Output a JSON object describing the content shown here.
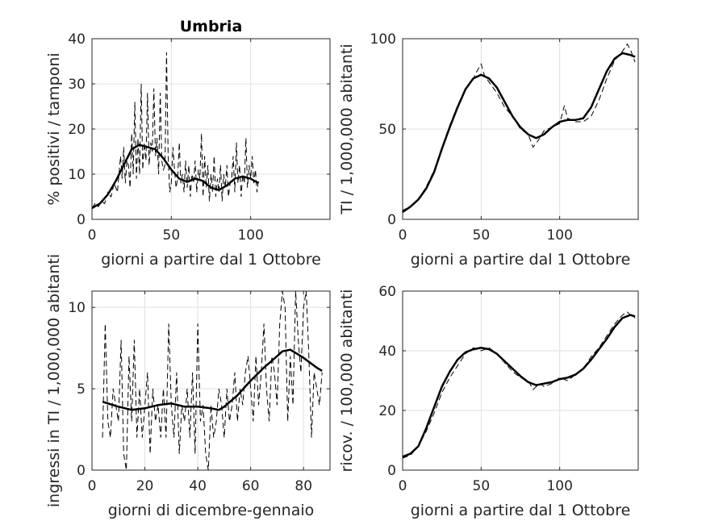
{
  "chart_data": [
    {
      "type": "line",
      "title": "Umbria",
      "xlabel": "giorni a partire dal 1 Ottobre",
      "ylabel": "% positivi / tamponi",
      "xlim": [
        0,
        150
      ],
      "ylim": [
        0,
        40
      ],
      "xticks": [
        "0",
        "50",
        "100"
      ],
      "yticks": [
        "0",
        "10",
        "20",
        "30",
        "40"
      ],
      "grid": true,
      "series": [
        {
          "style": "dashed",
          "x": [
            0,
            2,
            4,
            6,
            8,
            10,
            12,
            14,
            16,
            18,
            19,
            20,
            21,
            22,
            23,
            24,
            25,
            26,
            27,
            28,
            29,
            30,
            31,
            32,
            33,
            34,
            35,
            36,
            37,
            38,
            39,
            40,
            41,
            42,
            43,
            44,
            45,
            46,
            47,
            48,
            49,
            50,
            51,
            52,
            53,
            54,
            55,
            56,
            57,
            58,
            59,
            60,
            61,
            62,
            63,
            64,
            65,
            66,
            67,
            68,
            69,
            70,
            71,
            72,
            73,
            74,
            75,
            76,
            77,
            78,
            79,
            80,
            81,
            82,
            83,
            84,
            85,
            86,
            87,
            88,
            89,
            90,
            91,
            92,
            93,
            94,
            95,
            96,
            97,
            98,
            99,
            100,
            101,
            102,
            103,
            104,
            105
          ],
          "y": [
            2.5,
            3.5,
            2.8,
            4,
            3.5,
            6,
            5,
            8,
            6,
            14,
            9,
            16,
            8,
            13,
            12,
            7,
            19,
            10,
            26,
            9,
            18,
            10,
            30,
            11,
            17,
            13,
            28,
            12,
            17,
            15,
            29,
            14,
            18,
            10,
            28,
            13,
            11,
            12,
            37,
            14,
            6,
            8,
            16,
            11,
            7,
            9,
            17,
            8,
            10,
            6,
            13,
            7,
            12,
            5,
            10,
            8,
            13,
            6,
            11,
            9,
            19,
            5,
            14,
            7,
            12,
            4,
            10,
            6,
            14,
            5,
            9,
            6,
            12,
            4,
            10,
            7,
            12,
            5,
            8,
            9,
            14,
            6,
            17,
            8,
            12,
            5,
            10,
            8,
            18,
            7,
            12,
            9,
            14,
            8,
            11,
            6,
            9
          ]
        },
        {
          "style": "solid",
          "x": [
            0,
            5,
            10,
            15,
            20,
            25,
            30,
            35,
            40,
            45,
            50,
            55,
            60,
            65,
            70,
            75,
            80,
            85,
            90,
            95,
            100,
            105
          ],
          "y": [
            2.5,
            3.5,
            5.5,
            8.5,
            12,
            15.5,
            16.5,
            16,
            15.5,
            13.5,
            11,
            9,
            8.3,
            9,
            8.5,
            7,
            6.5,
            7.5,
            9,
            9.5,
            9,
            8
          ]
        }
      ]
    },
    {
      "type": "line",
      "title": "",
      "xlabel": "giorni a partire dal 1 Ottobre",
      "ylabel": "TI / 1,000,000 abitanti",
      "xlim": [
        0,
        150
      ],
      "ylim": [
        0,
        100
      ],
      "xticks": [
        "0",
        "50",
        "100"
      ],
      "yticks": [
        "0",
        "50",
        "100"
      ],
      "grid": true,
      "series": [
        {
          "style": "dashed",
          "x": [
            0,
            5,
            10,
            15,
            20,
            25,
            30,
            35,
            40,
            45,
            48,
            50,
            52,
            55,
            60,
            65,
            70,
            75,
            80,
            83,
            85,
            88,
            90,
            95,
            100,
            103,
            105,
            110,
            115,
            120,
            125,
            130,
            135,
            140,
            143,
            145,
            148
          ],
          "y": [
            5,
            7,
            11,
            18,
            27,
            40,
            52,
            63,
            72,
            78,
            83,
            86,
            80,
            76,
            70,
            62,
            57,
            50,
            47,
            40,
            42,
            46,
            49,
            51,
            53,
            63,
            56,
            54,
            54,
            57,
            66,
            78,
            88,
            93,
            97,
            94,
            87
          ]
        },
        {
          "style": "solid",
          "x": [
            0,
            5,
            10,
            15,
            20,
            25,
            30,
            35,
            40,
            45,
            50,
            55,
            60,
            65,
            70,
            75,
            80,
            85,
            90,
            95,
            100,
            105,
            110,
            115,
            120,
            125,
            130,
            135,
            140,
            145,
            148
          ],
          "y": [
            4,
            7,
            11,
            17,
            26,
            39,
            51,
            62,
            72,
            78,
            80,
            78,
            73,
            65,
            57,
            51,
            47,
            45,
            47,
            51,
            54,
            55,
            55,
            56,
            62,
            72,
            82,
            89,
            92,
            91,
            90
          ]
        }
      ]
    },
    {
      "type": "line",
      "title": "",
      "xlabel": "giorni di dicembre-gennaio",
      "ylabel": "ingressi in TI / 1,000,000 abitanti",
      "xlim": [
        0,
        90
      ],
      "ylim": [
        0,
        11
      ],
      "xticks": [
        "0",
        "20",
        "40",
        "60",
        "80"
      ],
      "yticks": [
        "0",
        "5",
        "10"
      ],
      "grid": true,
      "series": [
        {
          "style": "dashed",
          "x": [
            4,
            5,
            6,
            7,
            8,
            9,
            10,
            11,
            12,
            13,
            14,
            15,
            16,
            17,
            18,
            19,
            20,
            21,
            22,
            23,
            24,
            25,
            26,
            27,
            28,
            29,
            30,
            31,
            32,
            33,
            34,
            35,
            36,
            37,
            38,
            39,
            40,
            41,
            42,
            43,
            44,
            45,
            46,
            47,
            48,
            49,
            50,
            51,
            52,
            53,
            54,
            55,
            56,
            57,
            58,
            59,
            60,
            61,
            62,
            63,
            64,
            65,
            66,
            67,
            68,
            69,
            70,
            71,
            72,
            73,
            74,
            75,
            76,
            77,
            78,
            79,
            80,
            81,
            82,
            83,
            84,
            85,
            86,
            87
          ],
          "y": [
            2,
            9,
            3,
            2,
            5,
            4,
            3,
            8,
            1,
            0,
            7,
            3,
            8,
            2,
            5,
            2,
            4,
            6,
            1,
            5,
            3,
            4,
            2,
            5,
            2,
            9,
            4,
            2,
            6,
            1,
            4,
            3,
            5,
            2,
            6,
            1,
            9,
            3,
            4,
            1,
            0,
            4,
            2,
            3,
            5,
            4,
            2,
            5,
            3,
            4,
            6,
            3,
            5,
            4,
            6,
            7,
            5,
            3,
            7,
            4,
            6,
            9,
            5,
            3,
            7,
            6,
            4,
            9,
            11,
            10,
            3,
            7,
            4,
            11,
            8,
            6,
            10,
            11,
            7,
            2,
            6,
            5,
            4,
            6
          ]
        },
        {
          "style": "solid",
          "x": [
            4,
            10,
            15,
            20,
            25,
            30,
            35,
            40,
            45,
            48,
            50,
            55,
            60,
            65,
            70,
            72,
            75,
            78,
            80,
            85,
            87
          ],
          "y": [
            4.2,
            3.9,
            3.7,
            3.8,
            4,
            4.1,
            3.9,
            3.9,
            3.8,
            3.7,
            3.9,
            4.6,
            5.5,
            6.3,
            7,
            7.3,
            7.4,
            7.1,
            6.9,
            6.3,
            6.1
          ]
        }
      ]
    },
    {
      "type": "line",
      "title": "",
      "xlabel": "giorni a partire dal 1 Ottobre",
      "ylabel": "ricov. / 100,000 abitanti",
      "xlim": [
        0,
        150
      ],
      "ylim": [
        0,
        60
      ],
      "xticks": [
        "0",
        "50",
        "100"
      ],
      "yticks": [
        "0",
        "20",
        "40",
        "60"
      ],
      "grid": true,
      "series": [
        {
          "style": "dashed",
          "x": [
            0,
            5,
            10,
            15,
            20,
            25,
            30,
            35,
            40,
            45,
            50,
            55,
            60,
            65,
            70,
            75,
            80,
            83,
            85,
            88,
            90,
            95,
            100,
            105,
            110,
            115,
            120,
            125,
            130,
            135,
            140,
            143,
            145,
            148
          ],
          "y": [
            4,
            5,
            8,
            13,
            19,
            26,
            31,
            35,
            39,
            41,
            40,
            41,
            39,
            36,
            33,
            31,
            30,
            27,
            28,
            29,
            28,
            29,
            31,
            30,
            32,
            34,
            38,
            41,
            45,
            49,
            52,
            53,
            52,
            51
          ]
        },
        {
          "style": "solid",
          "x": [
            0,
            5,
            10,
            15,
            20,
            25,
            30,
            35,
            40,
            45,
            50,
            55,
            60,
            65,
            70,
            75,
            80,
            85,
            90,
            95,
            100,
            105,
            110,
            115,
            120,
            125,
            130,
            135,
            140,
            145,
            148
          ],
          "y": [
            4.5,
            5.5,
            8,
            14,
            21,
            28,
            33,
            37,
            39.5,
            40.5,
            41,
            40.5,
            39,
            36.5,
            34,
            31.5,
            29.5,
            28.5,
            29,
            29.5,
            30.5,
            31,
            32,
            34,
            37,
            40.5,
            44,
            48,
            51,
            52,
            51.5
          ]
        }
      ]
    }
  ]
}
